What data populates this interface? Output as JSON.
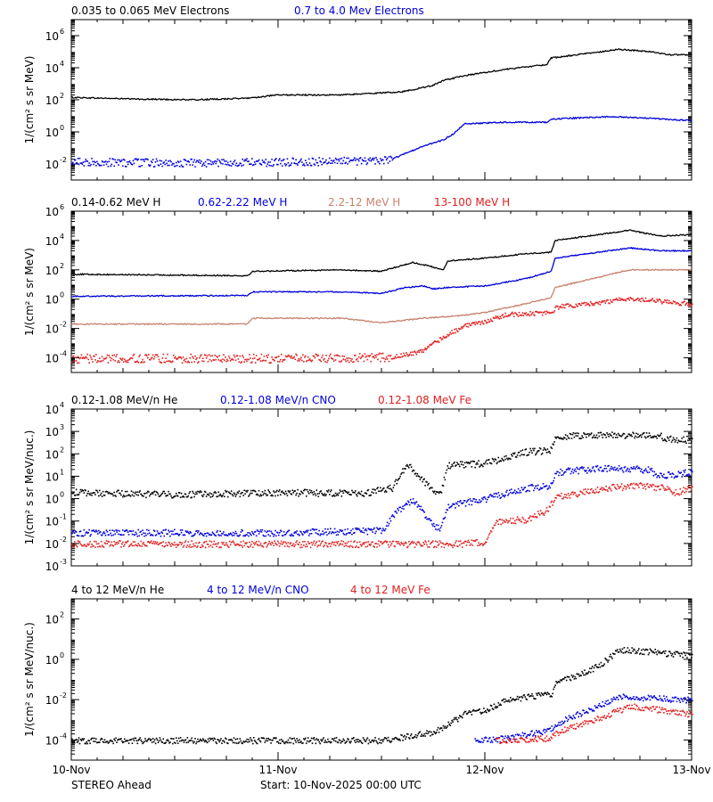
{
  "colors": {
    "black": "#000000",
    "blue": "#0000dd",
    "brown": "#c8826e",
    "red": "#e02020"
  },
  "footer": {
    "spacecraft": "STEREO Ahead",
    "start": "Start: 10-Nov-2025 00:00 UTC"
  },
  "chart_data": [
    {
      "type": "scatter",
      "yscale": "log",
      "ylabel": "1/(cm² s sr MeV)",
      "ylim_exp": [
        -3,
        7
      ],
      "yticks": [
        {
          "exp": -2,
          "label": "10",
          "sup": "-2"
        },
        {
          "exp": 0,
          "label": "10",
          "sup": "0"
        },
        {
          "exp": 2,
          "label": "10",
          "sup": "2"
        },
        {
          "exp": 4,
          "label": "10",
          "sup": "4"
        },
        {
          "exp": 6,
          "label": "10",
          "sup": "6"
        }
      ],
      "xlim_days": [
        0,
        3
      ],
      "x_ticks": [
        "10-Nov",
        "11-Nov",
        "12-Nov",
        "13-Nov"
      ],
      "series": [
        {
          "name": "0.035 to 0.065 MeV Electrons",
          "color": "black",
          "style": "line",
          "points": [
            [
              0,
              2.15
            ],
            [
              0.3,
              2.05
            ],
            [
              0.6,
              2.0
            ],
            [
              0.85,
              2.1
            ],
            [
              1.0,
              2.3
            ],
            [
              1.3,
              2.3
            ],
            [
              1.6,
              2.5
            ],
            [
              1.75,
              2.9
            ],
            [
              1.8,
              3.2
            ],
            [
              1.9,
              3.5
            ],
            [
              2.1,
              3.9
            ],
            [
              2.3,
              4.2
            ],
            [
              2.32,
              4.6
            ],
            [
              2.5,
              4.9
            ],
            [
              2.65,
              5.15
            ],
            [
              2.8,
              5.0
            ],
            [
              2.9,
              4.8
            ],
            [
              3.0,
              4.8
            ]
          ]
        },
        {
          "name": "0.7 to 4.0 Mev Electrons",
          "color": "blue",
          "style": "line",
          "noisy_start": 1.55,
          "points": [
            [
              0,
              -1.85
            ],
            [
              0.5,
              -1.9
            ],
            [
              1.0,
              -1.85
            ],
            [
              1.5,
              -1.75
            ],
            [
              1.55,
              -1.7
            ],
            [
              1.7,
              -0.9
            ],
            [
              1.8,
              -0.5
            ],
            [
              1.85,
              -0.1
            ],
            [
              1.9,
              0.5
            ],
            [
              2.1,
              0.6
            ],
            [
              2.3,
              0.6
            ],
            [
              2.32,
              0.8
            ],
            [
              2.6,
              0.95
            ],
            [
              2.8,
              0.85
            ],
            [
              3.0,
              0.7
            ]
          ]
        }
      ]
    },
    {
      "type": "scatter",
      "yscale": "log",
      "ylabel": "1/(cm² s sr MeV)",
      "ylim_exp": [
        -5,
        6
      ],
      "yticks": [
        {
          "exp": -4,
          "label": "10",
          "sup": "-4"
        },
        {
          "exp": -2,
          "label": "10",
          "sup": "-2"
        },
        {
          "exp": 0,
          "label": "10",
          "sup": "0"
        },
        {
          "exp": 2,
          "label": "10",
          "sup": "2"
        },
        {
          "exp": 4,
          "label": "10",
          "sup": "4"
        },
        {
          "exp": 6,
          "label": "10",
          "sup": "6"
        }
      ],
      "xlim_days": [
        0,
        3
      ],
      "x_ticks": [
        "10-Nov",
        "11-Nov",
        "12-Nov",
        "13-Nov"
      ],
      "series": [
        {
          "name": "0.14-0.62 MeV H",
          "color": "black",
          "style": "line",
          "points": [
            [
              0,
              1.7
            ],
            [
              0.85,
              1.6
            ],
            [
              0.88,
              1.9
            ],
            [
              1.3,
              2.0
            ],
            [
              1.5,
              1.9
            ],
            [
              1.6,
              2.3
            ],
            [
              1.65,
              2.5
            ],
            [
              1.72,
              2.3
            ],
            [
              1.8,
              2.0
            ],
            [
              1.82,
              2.6
            ],
            [
              2.0,
              2.8
            ],
            [
              2.2,
              3.1
            ],
            [
              2.32,
              3.2
            ],
            [
              2.34,
              4.0
            ],
            [
              2.55,
              4.4
            ],
            [
              2.7,
              4.7
            ],
            [
              2.85,
              4.3
            ],
            [
              3.0,
              4.4
            ]
          ]
        },
        {
          "name": "0.62-2.22 MeV H",
          "color": "blue",
          "style": "line",
          "points": [
            [
              0,
              0.2
            ],
            [
              0.85,
              0.25
            ],
            [
              0.88,
              0.5
            ],
            [
              1.3,
              0.5
            ],
            [
              1.5,
              0.4
            ],
            [
              1.62,
              0.8
            ],
            [
              1.7,
              0.9
            ],
            [
              1.75,
              0.7
            ],
            [
              1.82,
              0.8
            ],
            [
              2.0,
              0.9
            ],
            [
              2.2,
              1.4
            ],
            [
              2.32,
              1.9
            ],
            [
              2.34,
              2.8
            ],
            [
              2.55,
              3.2
            ],
            [
              2.7,
              3.5
            ],
            [
              2.85,
              3.3
            ],
            [
              3.0,
              3.3
            ]
          ]
        },
        {
          "name": "2.2-12 MeV H",
          "color": "brown",
          "style": "line",
          "points": [
            [
              0,
              -1.7
            ],
            [
              0.85,
              -1.7
            ],
            [
              0.88,
              -1.3
            ],
            [
              1.3,
              -1.3
            ],
            [
              1.5,
              -1.6
            ],
            [
              1.7,
              -1.3
            ],
            [
              1.9,
              -1.1
            ],
            [
              2.0,
              -0.9
            ],
            [
              2.1,
              -0.6
            ],
            [
              2.2,
              -0.3
            ],
            [
              2.32,
              0.1
            ],
            [
              2.34,
              0.8
            ],
            [
              2.55,
              1.5
            ],
            [
              2.7,
              2.0
            ],
            [
              3.0,
              2.0
            ]
          ]
        },
        {
          "name": "13-100 MeV H",
          "color": "red",
          "style": "scatter",
          "noisy_until": 1.55,
          "points": [
            [
              0,
              -4.0
            ],
            [
              1.2,
              -4.0
            ],
            [
              1.55,
              -3.9
            ],
            [
              1.7,
              -3.5
            ],
            [
              1.8,
              -2.5
            ],
            [
              1.9,
              -1.8
            ],
            [
              2.0,
              -1.5
            ],
            [
              2.1,
              -1.0
            ],
            [
              2.32,
              -0.9
            ],
            [
              2.34,
              -0.5
            ],
            [
              2.6,
              -0.1
            ],
            [
              2.7,
              0.1
            ],
            [
              2.85,
              -0.1
            ],
            [
              3.0,
              -0.3
            ]
          ]
        }
      ]
    },
    {
      "type": "scatter",
      "yscale": "log",
      "ylabel": "1/(cm² s sr MeV/nuc.)",
      "ylim_exp": [
        -3,
        4
      ],
      "yticks": [
        {
          "exp": -3,
          "label": "10",
          "sup": "-3"
        },
        {
          "exp": -2,
          "label": "10",
          "sup": "-2"
        },
        {
          "exp": -1,
          "label": "10",
          "sup": "-1"
        },
        {
          "exp": 0,
          "label": "10",
          "sup": "0"
        },
        {
          "exp": 1,
          "label": "10",
          "sup": "1"
        },
        {
          "exp": 2,
          "label": "10",
          "sup": "2"
        },
        {
          "exp": 3,
          "label": "10",
          "sup": "3"
        },
        {
          "exp": 4,
          "label": "10",
          "sup": "4"
        }
      ],
      "xlim_days": [
        0,
        3
      ],
      "x_ticks": [
        "10-Nov",
        "11-Nov",
        "12-Nov",
        "13-Nov"
      ],
      "series": [
        {
          "name": "0.12-1.08 MeV/n He",
          "color": "black",
          "style": "scatter",
          "points": [
            [
              0,
              0.3
            ],
            [
              0.5,
              0.2
            ],
            [
              1.0,
              0.3
            ],
            [
              1.4,
              0.25
            ],
            [
              1.55,
              0.5
            ],
            [
              1.6,
              1.3
            ],
            [
              1.63,
              1.5
            ],
            [
              1.7,
              0.8
            ],
            [
              1.78,
              0.2
            ],
            [
              1.82,
              1.5
            ],
            [
              2.0,
              1.6
            ],
            [
              2.2,
              2.1
            ],
            [
              2.32,
              2.2
            ],
            [
              2.34,
              2.8
            ],
            [
              2.6,
              2.9
            ],
            [
              2.85,
              2.8
            ],
            [
              2.92,
              2.6
            ],
            [
              3.0,
              2.7
            ]
          ]
        },
        {
          "name": "0.12-1.08 MeV/n CNO",
          "color": "blue",
          "style": "scatter",
          "points": [
            [
              0,
              -1.5
            ],
            [
              1.0,
              -1.5
            ],
            [
              1.5,
              -1.4
            ],
            [
              1.58,
              -0.5
            ],
            [
              1.65,
              0.0
            ],
            [
              1.7,
              -0.6
            ],
            [
              1.78,
              -1.4
            ],
            [
              1.82,
              -0.3
            ],
            [
              2.0,
              0.0
            ],
            [
              2.2,
              0.5
            ],
            [
              2.32,
              0.6
            ],
            [
              2.34,
              1.2
            ],
            [
              2.6,
              1.4
            ],
            [
              2.8,
              1.3
            ],
            [
              2.83,
              1.0
            ],
            [
              3.0,
              1.2
            ]
          ]
        },
        {
          "name": "0.12-1.08 MeV Fe",
          "color": "red",
          "style": "scatter",
          "points": [
            [
              0,
              -2.0
            ],
            [
              1.9,
              -2.0
            ],
            [
              2.0,
              -1.9
            ],
            [
              2.05,
              -1.0
            ],
            [
              2.2,
              -0.9
            ],
            [
              2.3,
              -0.5
            ],
            [
              2.34,
              0.1
            ],
            [
              2.6,
              0.5
            ],
            [
              2.75,
              0.6
            ],
            [
              2.88,
              0.5
            ],
            [
              2.92,
              0.3
            ],
            [
              3.0,
              0.5
            ]
          ]
        }
      ]
    },
    {
      "type": "scatter",
      "yscale": "log",
      "ylabel": "1/(cm² s sr MeV/nuc.)",
      "ylim_exp": [
        -5,
        3
      ],
      "yticks": [
        {
          "exp": -4,
          "label": "10",
          "sup": "-4"
        },
        {
          "exp": -2,
          "label": "10",
          "sup": "-2"
        },
        {
          "exp": 0,
          "label": "10",
          "sup": "0"
        },
        {
          "exp": 2,
          "label": "10",
          "sup": "2"
        }
      ],
      "xlim_days": [
        0,
        3
      ],
      "x_ticks": [
        "10-Nov",
        "11-Nov",
        "12-Nov",
        "13-Nov"
      ],
      "series": [
        {
          "name": "4 to 12 MeV/n He",
          "color": "black",
          "style": "scatter",
          "points": [
            [
              0,
              -4.0
            ],
            [
              0.5,
              -4.0
            ],
            [
              1.0,
              -4.0
            ],
            [
              1.5,
              -4.0
            ],
            [
              1.75,
              -3.6
            ],
            [
              1.9,
              -2.7
            ],
            [
              2.0,
              -2.5
            ],
            [
              2.1,
              -2.0
            ],
            [
              2.32,
              -1.7
            ],
            [
              2.34,
              -1.2
            ],
            [
              2.55,
              -0.3
            ],
            [
              2.65,
              0.5
            ],
            [
              2.8,
              0.4
            ],
            [
              3.0,
              0.2
            ]
          ]
        },
        {
          "name": "4 to 12 MeV/n CNO",
          "color": "blue",
          "style": "scatter",
          "points": [
            [
              1.95,
              -4.0
            ],
            [
              2.1,
              -3.9
            ],
            [
              2.3,
              -3.5
            ],
            [
              2.4,
              -2.9
            ],
            [
              2.55,
              -2.3
            ],
            [
              2.65,
              -1.8
            ],
            [
              2.8,
              -1.9
            ],
            [
              3.0,
              -2.0
            ]
          ]
        },
        {
          "name": "4 to 12 MeV Fe",
          "color": "red",
          "style": "scatter",
          "points": [
            [
              2.05,
              -4.0
            ],
            [
              2.3,
              -3.9
            ],
            [
              2.4,
              -3.4
            ],
            [
              2.55,
              -2.9
            ],
            [
              2.7,
              -2.3
            ],
            [
              2.85,
              -2.5
            ],
            [
              3.0,
              -2.7
            ]
          ]
        }
      ]
    }
  ]
}
